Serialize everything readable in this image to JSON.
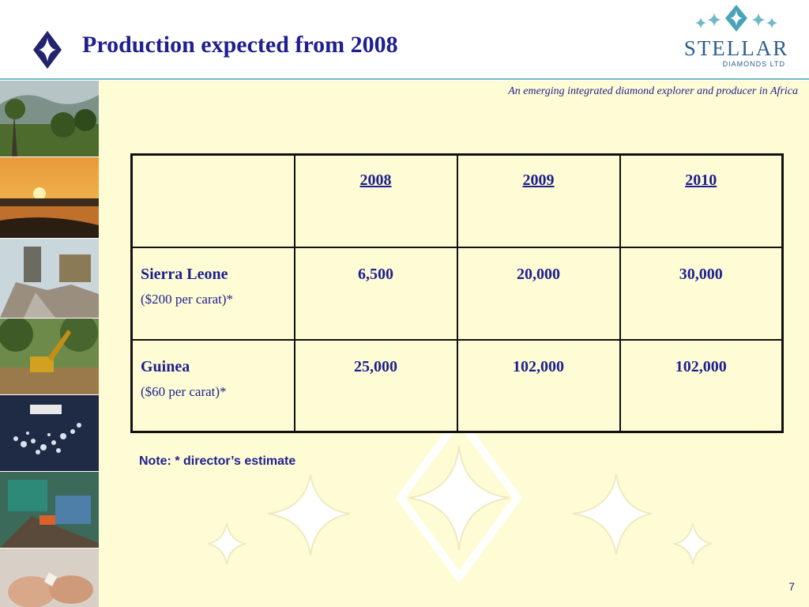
{
  "header": {
    "title": "Production expected from 2008",
    "logo_name": "STELLAR",
    "logo_subtitle": "DIAMONDS LTD"
  },
  "tagline": "An emerging integrated diamond explorer and producer in Africa",
  "table": {
    "years": [
      "2008",
      "2009",
      "2010"
    ],
    "rows": [
      {
        "name": "Sierra Leone",
        "note": "($200 per carat)*",
        "values": [
          "6,500",
          "20,000",
          "30,000"
        ]
      },
      {
        "name": "Guinea",
        "note": "($60 per carat)*",
        "values": [
          "25,000",
          "102,000",
          "102,000"
        ]
      }
    ]
  },
  "footnote": "Note: * director’s estimate",
  "page_number": "7",
  "colors": {
    "title_navy": "#1f1f8f",
    "content_bg": "#fdfcd4",
    "accent_teal": "#6fb8c8",
    "logo_blue": "#2c5f8c"
  }
}
